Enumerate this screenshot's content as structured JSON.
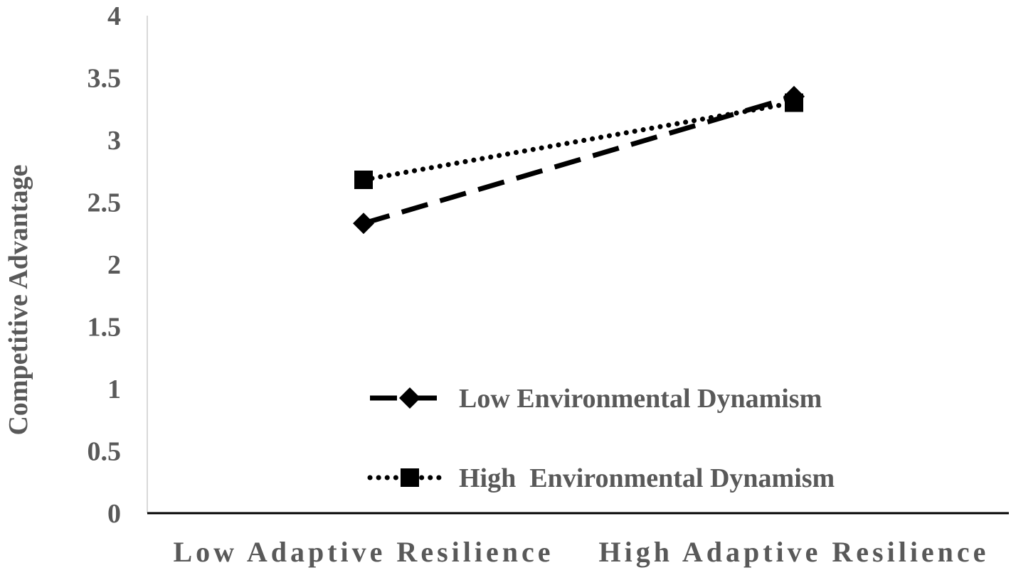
{
  "chart_data": {
    "type": "line",
    "categories": [
      "Low Adaptive Resilience",
      "High Adaptive Resilience"
    ],
    "series": [
      {
        "name": "Low Environmental Dynamism",
        "values": [
          2.33,
          3.35
        ],
        "line_style": "dashed",
        "marker": "diamond",
        "color": "#000000"
      },
      {
        "name": "High  Environmental Dynamism",
        "values": [
          2.68,
          3.3
        ],
        "line_style": "dotted",
        "marker": "square",
        "color": "#000000"
      }
    ],
    "ylabel": "Competitive Advantage",
    "xlabel": "",
    "ylim": [
      0,
      4
    ],
    "yticks": [
      "0",
      "0.5",
      "1",
      "1.5",
      "2",
      "2.5",
      "3",
      "3.5",
      "4"
    ],
    "grid": false,
    "legend_position": "bottom-center inside plot"
  }
}
